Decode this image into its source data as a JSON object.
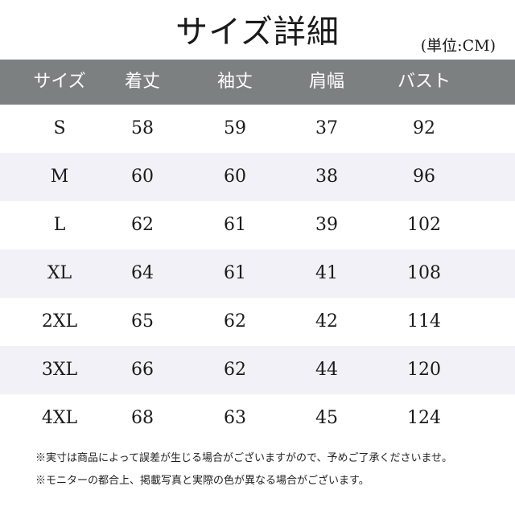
{
  "title": "サイズ詳細",
  "unit": "(単位:CM)",
  "table": {
    "headers": [
      "サイズ",
      "着丈",
      "袖丈",
      "肩幅",
      "バスト"
    ],
    "rows": [
      [
        "S",
        "58",
        "59",
        "37",
        "92"
      ],
      [
        "M",
        "60",
        "60",
        "38",
        "96"
      ],
      [
        "L",
        "62",
        "61",
        "39",
        "102"
      ],
      [
        "XL",
        "64",
        "61",
        "41",
        "108"
      ],
      [
        "2XL",
        "65",
        "62",
        "42",
        "114"
      ],
      [
        "3XL",
        "66",
        "62",
        "44",
        "120"
      ],
      [
        "4XL",
        "68",
        "63",
        "45",
        "124"
      ]
    ]
  },
  "notes": [
    "※実寸は商品によって誤差が生じる場合がございますがので、予めご了承くださいませ。",
    "※モニターの都合上、掲載写真と実際の色が異なる場合がございます。"
  ],
  "colors": {
    "header_bg": "#7c8081",
    "alt_row_bg": "#f1f1f7"
  }
}
